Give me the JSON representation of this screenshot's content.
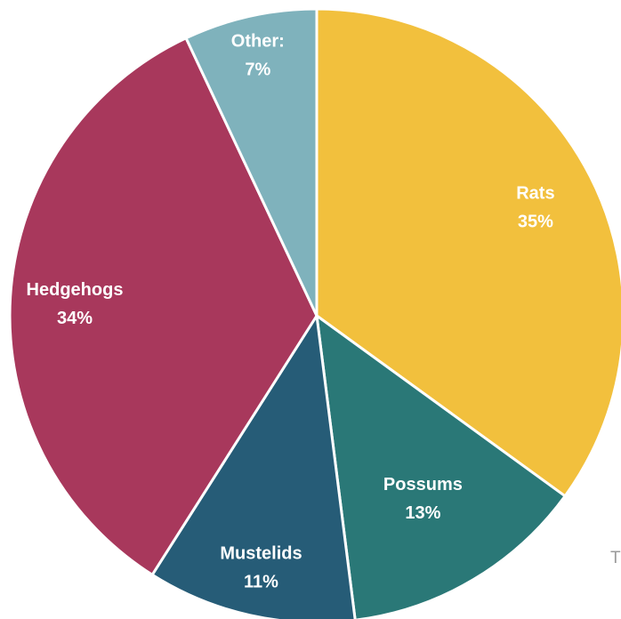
{
  "chart_data": {
    "type": "pie",
    "title": "",
    "slices": [
      {
        "label": "Rats",
        "value": 35,
        "value_label": "35%",
        "color": "#F2C03D"
      },
      {
        "label": "Possums",
        "value": 13,
        "value_label": "13%",
        "color": "#2A7877"
      },
      {
        "label": "Mustelids",
        "value": 11,
        "value_label": "11%",
        "color": "#265C77"
      },
      {
        "label": "Hedgehogs",
        "value": 34,
        "value_label": "34%",
        "color": "#A8385C"
      },
      {
        "label": "Other:",
        "value": 7,
        "value_label": "7%",
        "color": "#7FB2BC"
      }
    ],
    "start": "top, clockwise",
    "legend": "none"
  },
  "edge_text": "T"
}
